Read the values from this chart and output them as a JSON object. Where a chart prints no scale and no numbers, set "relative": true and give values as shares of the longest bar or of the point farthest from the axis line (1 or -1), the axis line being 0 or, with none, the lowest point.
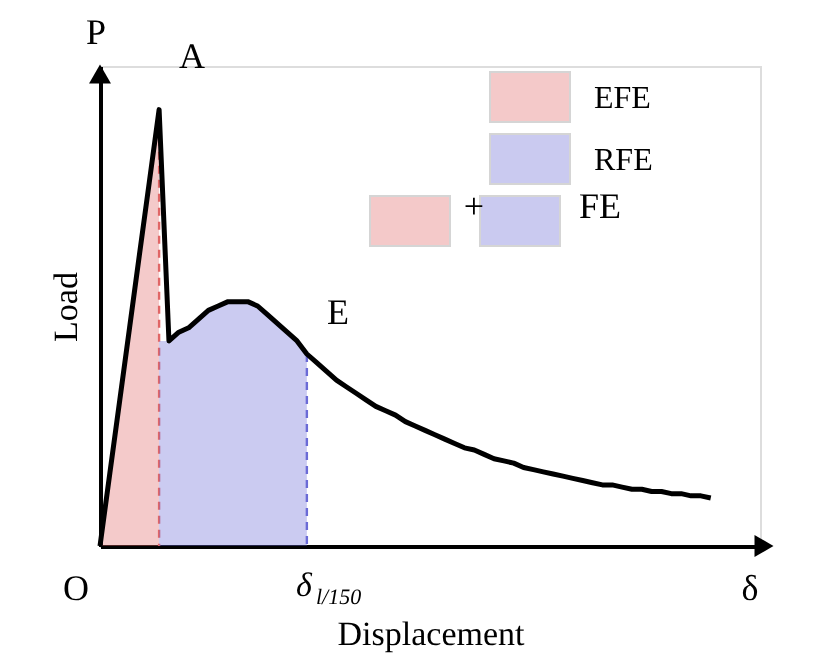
{
  "chart_data": {
    "type": "line",
    "relative": true,
    "xlabel": "Displacement",
    "ylabel": "Load",
    "legend": "top right",
    "tick_labels": false,
    "categories": [
      null,
      null,
      null,
      null,
      null,
      null,
      null,
      null,
      null,
      null,
      null,
      null,
      null,
      null,
      null,
      null,
      null,
      null,
      null,
      null,
      null,
      null,
      null,
      null,
      null,
      null,
      null,
      null,
      null,
      null,
      null,
      null,
      null,
      null,
      null,
      null,
      null,
      null,
      null,
      null,
      null,
      null,
      null,
      null,
      null,
      null,
      null,
      null,
      null,
      null,
      null,
      null,
      null,
      null,
      null,
      null,
      null,
      null,
      null,
      null,
      null,
      null,
      null
    ],
    "series": [
      {
        "name": "EFE",
        "type": "area",
        "color": "#e06666",
        "values": [
          0,
          0.167,
          0.333,
          0.5,
          0.667,
          0.833,
          1,
          null,
          null,
          null,
          null,
          null,
          null,
          null,
          null,
          null,
          null,
          null,
          null,
          null,
          null,
          null,
          null,
          null,
          null,
          null,
          null,
          null,
          null,
          null,
          null,
          null,
          null,
          null,
          null,
          null,
          null,
          null,
          null,
          null,
          null,
          null,
          null,
          null,
          null,
          null,
          null,
          null,
          null,
          null,
          null,
          null,
          null,
          null,
          null,
          null,
          null,
          null,
          null,
          null,
          null,
          null,
          null
        ]
      },
      {
        "name": "RFE",
        "type": "area",
        "color": "#6b6bd6",
        "values": [
          null,
          null,
          null,
          null,
          null,
          null,
          0.47,
          0.47,
          0.49,
          0.5,
          0.52,
          0.54,
          0.55,
          0.56,
          0.56,
          0.56,
          0.55,
          0.53,
          0.51,
          0.49,
          0.47,
          0.44,
          null,
          null,
          null,
          null,
          null,
          null,
          null,
          null,
          null,
          null,
          null,
          null,
          null,
          null,
          null,
          null,
          null,
          null,
          null,
          null,
          null,
          null,
          null,
          null,
          null,
          null,
          null,
          null,
          null,
          null,
          null,
          null,
          null,
          null,
          null,
          null,
          null,
          null,
          null,
          null,
          null
        ]
      },
      {
        "color": "#000000",
        "values": [
          0,
          0.167,
          0.333,
          0.5,
          0.667,
          0.833,
          1,
          0.47,
          0.49,
          0.5,
          0.52,
          0.54,
          0.55,
          0.56,
          0.56,
          0.56,
          0.55,
          0.53,
          0.51,
          0.49,
          0.47,
          0.44,
          0.42,
          0.4,
          0.38,
          0.365,
          0.35,
          0.335,
          0.32,
          0.31,
          0.3,
          0.285,
          0.275,
          0.265,
          0.255,
          0.245,
          0.235,
          0.225,
          0.22,
          0.21,
          0.2,
          0.195,
          0.19,
          0.18,
          0.175,
          0.17,
          0.165,
          0.16,
          0.155,
          0.15,
          0.145,
          0.14,
          0.14,
          0.135,
          0.13,
          0.13,
          0.125,
          0.125,
          0.12,
          0.12,
          0.115,
          0.115,
          0.11
        ]
      }
    ],
    "annotations": [
      "P",
      "A",
      "E",
      "O",
      "δ",
      "δ$_{l/150}$",
      "+",
      "FE"
    ]
  }
}
